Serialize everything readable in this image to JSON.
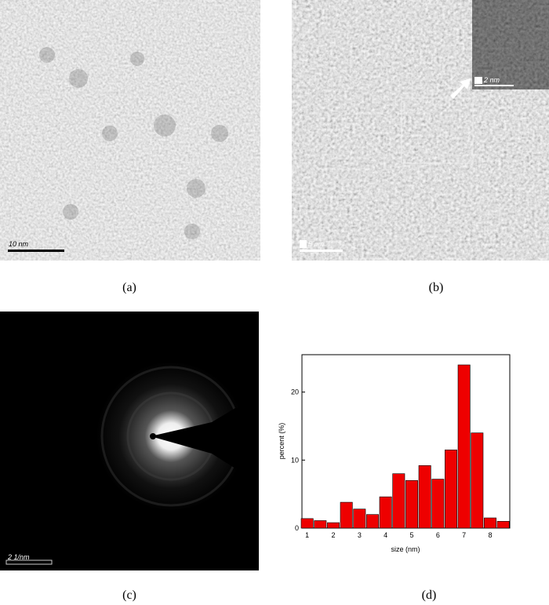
{
  "panels": [
    {
      "label": "(a)",
      "scale_bar": "10 nm"
    },
    {
      "label": "(b)",
      "scale_bar": "5 nm",
      "inset_scale_bar": "2 nm"
    },
    {
      "label": "(c)",
      "scale_bar": "2 1/nm"
    },
    {
      "label": "(d)"
    }
  ],
  "chart_data": {
    "type": "bar",
    "x_label": "size (nm)",
    "y_label": "percent (%)",
    "x": [
      1,
      1.5,
      2,
      2.5,
      3,
      3.5,
      4,
      4.5,
      5,
      5.5,
      6,
      6.5,
      7,
      7.5,
      8,
      8.5
    ],
    "values": [
      1.4,
      1.1,
      0.8,
      3.8,
      2.8,
      2.0,
      4.6,
      8.0,
      7.0,
      9.2,
      7.2,
      11.5,
      24,
      14,
      1.5,
      1.0
    ],
    "color": "#ee0000",
    "xlim": [
      0.8,
      8.75
    ],
    "ylim": [
      0,
      25.5
    ],
    "xticks": [
      1,
      2,
      3,
      4,
      5,
      6,
      7,
      8
    ],
    "yticks": [
      0,
      10,
      20
    ]
  }
}
